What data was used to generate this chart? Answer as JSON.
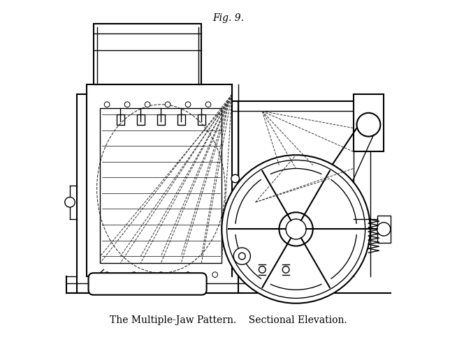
{
  "title": "Fig. 9.",
  "caption": "The Multiple-Jaw Pattern.    Sectional Elevation.",
  "bg_color": "#ffffff",
  "line_color": "#000000",
  "dashed_color": "#333333",
  "title_fontsize": 10,
  "caption_fontsize": 10,
  "figsize": [
    6.54,
    4.83
  ],
  "dpi": 100
}
